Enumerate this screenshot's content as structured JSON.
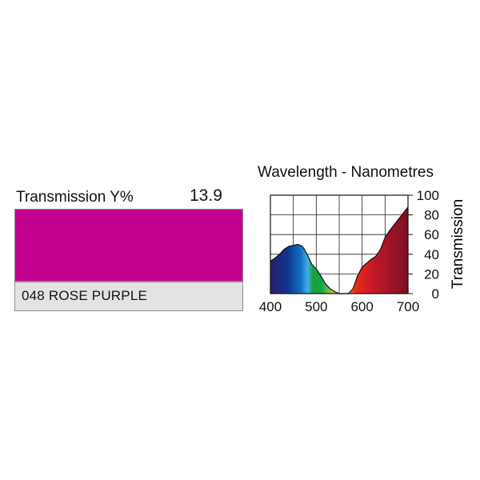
{
  "filter": {
    "transmission_label": "Transmission Y%",
    "transmission_value": "13.9",
    "name": "048 ROSE PURPLE",
    "swatch_color": "#c4008e"
  },
  "chart_data": {
    "type": "area",
    "title": "Wavelength - Nanometres",
    "xlabel": "",
    "ylabel": "Transmission",
    "xlim": [
      400,
      700
    ],
    "ylim": [
      0,
      100
    ],
    "x_ticks": [
      400,
      500,
      600,
      700
    ],
    "y_ticks": [
      0,
      20,
      40,
      60,
      80,
      100
    ],
    "grid": true,
    "fill": "visible-spectrum",
    "series": [
      {
        "x": [
          400,
          410,
          420,
          430,
          440,
          450,
          460,
          470,
          480,
          490,
          500,
          510,
          520,
          530,
          540,
          550,
          560,
          570,
          580,
          590,
          600,
          610,
          620,
          630,
          640,
          650,
          660,
          670,
          680,
          690,
          700
        ],
        "values": [
          33,
          36,
          40,
          45,
          48,
          49,
          50,
          48,
          40,
          30,
          25,
          18,
          10,
          5,
          2,
          0,
          0,
          0,
          5,
          18,
          27,
          31,
          35,
          38,
          45,
          57,
          64,
          70,
          76,
          82,
          88
        ]
      }
    ]
  }
}
